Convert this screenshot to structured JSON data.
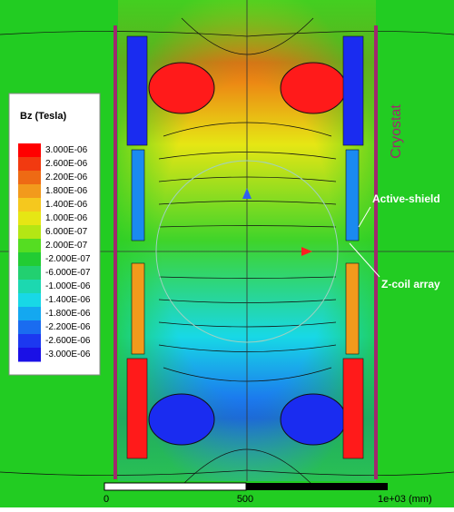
{
  "legend": {
    "title": "Bz (Tesla)",
    "labels": [
      "3.000E-06",
      "2.600E-06",
      "2.200E-06",
      "1.800E-06",
      "1.400E-06",
      "1.000E-06",
      "6.000E-07",
      "2.000E-07",
      "-2.000E-07",
      "-6.000E-07",
      "-1.000E-06",
      "-1.400E-06",
      "-1.800E-06",
      "-2.200E-06",
      "-2.600E-06",
      "-3.000E-06"
    ],
    "colors": [
      "#ff0000",
      "#f23a10",
      "#ee6a14",
      "#f29a1c",
      "#f5c81e",
      "#e6e614",
      "#b4e614",
      "#55dd22",
      "#22cc33",
      "#22d070",
      "#1cd8b0",
      "#18d8e6",
      "#14a8f0",
      "#1a6cf0",
      "#1c38f0",
      "#1a10e6"
    ]
  },
  "annotations": {
    "cryostat": "Cryostat",
    "active_shield": "Active-shield",
    "z_coil": "Z-coil array"
  },
  "scale_bar": {
    "labels": [
      "0",
      "500",
      "1e+03 (mm)"
    ]
  }
}
